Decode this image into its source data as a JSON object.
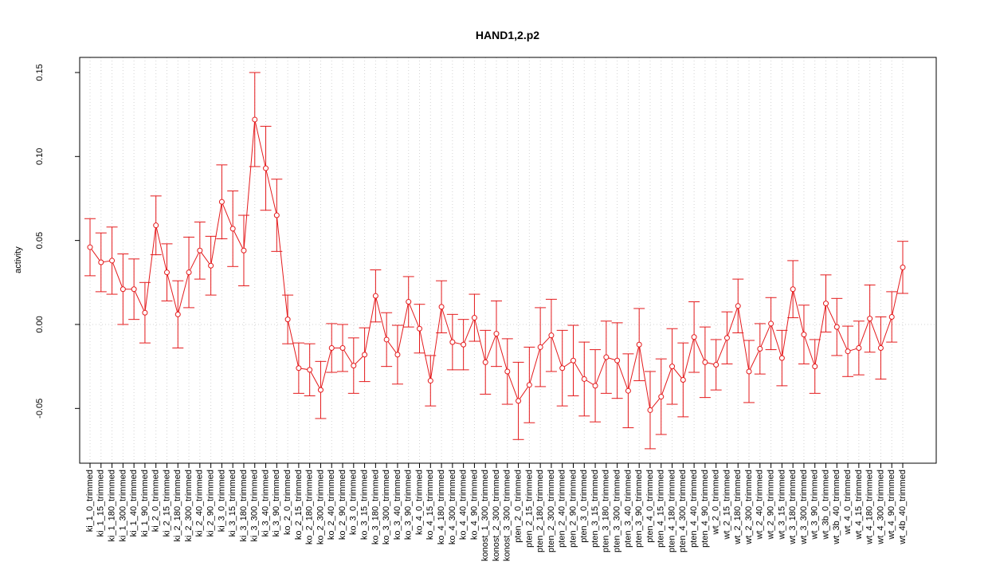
{
  "chart_data": {
    "type": "errorbar",
    "title": "HAND1,2.p2",
    "ylabel": "activity",
    "color": "#e41a1c",
    "categories": [
      "ki_1_0_trimmed",
      "ki_1_15_trimmed",
      "ki_1_180_trimmed",
      "ki_1_300_trimmed",
      "ki_1_40_trimmed",
      "ki_1_90_trimmed",
      "ki_2_0_trimmed",
      "ki_2_15_trimmed",
      "ki_2_180_trimmed",
      "ki_2_300_trimmed",
      "ki_2_40_trimmed",
      "ki_2_90_trimmed",
      "ki_3_0_trimmed",
      "ki_3_15_trimmed",
      "ki_3_180_trimmed",
      "ki_3_300_trimmed",
      "ki_3_40_trimmed",
      "ki_3_90_trimmed",
      "ko_2_0_trimmed",
      "ko_2_15_trimmed",
      "ko_2_180_trimmed",
      "ko_2_300_trimmed",
      "ko_2_40_trimmed",
      "ko_2_90_trimmed",
      "ko_3_0_trimmed",
      "ko_3_15_trimmed",
      "ko_3_180_trimmed",
      "ko_3_300_trimmed",
      "ko_3_40_trimmed",
      "ko_3_90_trimmed",
      "ko_4_0_trimmed",
      "ko_4_15_trimmed",
      "ko_4_180_trimmed",
      "ko_4_300_trimmed",
      "ko_4_40_trimmed",
      "ko_4_90_trimmed",
      "konost_1_300_trimmed",
      "konost_2_300_trimmed",
      "konost_3_300_trimmed",
      "pten_2_0_trimmed",
      "pten_2_15_trimmed",
      "pten_2_180_trimmed",
      "pten_2_300_trimmed",
      "pten_2_40_trimmed",
      "pten_2_90_trimmed",
      "pten_3_0_trimmed",
      "pten_3_15_trimmed",
      "pten_3_180_trimmed",
      "pten_3_300_trimmed",
      "pten_3_40_trimmed",
      "pten_3_90_trimmed",
      "pten_4_0_trimmed",
      "pten_4_15_trimmed",
      "pten_4_180_trimmed",
      "pten_4_300_trimmed",
      "pten_4_40_trimmed",
      "pten_4_90_trimmed",
      "wt_2_0_trimmed",
      "wt_2_15_trimmed",
      "wt_2_180_trimmed",
      "wt_2_300_trimmed",
      "wt_2_40_trimmed",
      "wt_2_90_trimmed",
      "wt_3_15_trimmed",
      "wt_3_180_trimmed",
      "wt_3_300_trimmed",
      "wt_3_90_trimmed",
      "wt_3b_0_trimmed",
      "wt_3b_40_trimmed",
      "wt_4_0_trimmed",
      "wt_4_15_trimmed",
      "wt_4_180_trimmed",
      "wt_4_300_trimmed",
      "wt_4_90_trimmed",
      "wt_4b_40_trimmed"
    ],
    "values": [
      0.046,
      0.037,
      0.038,
      0.021,
      0.021,
      0.007,
      0.059,
      0.031,
      0.006,
      0.031,
      0.044,
      0.035,
      0.073,
      0.057,
      0.044,
      0.122,
      0.093,
      0.065,
      0.003,
      -0.026,
      -0.027,
      -0.039,
      -0.014,
      -0.014,
      -0.0245,
      -0.018,
      0.017,
      -0.009,
      -0.018,
      0.0135,
      -0.0025,
      -0.0335,
      0.0105,
      -0.0105,
      -0.012,
      0.004,
      -0.0225,
      -0.0055,
      -0.028,
      -0.0455,
      -0.036,
      -0.0135,
      -0.0065,
      -0.026,
      -0.0215,
      -0.0325,
      -0.0365,
      -0.0195,
      -0.0215,
      -0.0395,
      -0.012,
      -0.051,
      -0.043,
      -0.025,
      -0.033,
      -0.0075,
      -0.0225,
      -0.024,
      -0.008,
      0.011,
      -0.028,
      -0.0145,
      0.0005,
      -0.02,
      0.021,
      -0.006,
      -0.025,
      0.0125,
      -0.0015,
      -0.016,
      -0.014,
      0.0035,
      -0.014,
      0.0045,
      0.034
    ],
    "errors": [
      0.017,
      0.0175,
      0.02,
      0.021,
      0.018,
      0.018,
      0.0175,
      0.017,
      0.02,
      0.021,
      0.017,
      0.0175,
      0.022,
      0.0225,
      0.021,
      0.028,
      0.025,
      0.0215,
      0.0145,
      0.015,
      0.0155,
      0.017,
      0.0145,
      0.014,
      0.0165,
      0.016,
      0.0155,
      0.016,
      0.0175,
      0.015,
      0.0145,
      0.015,
      0.0155,
      0.0165,
      0.015,
      0.014,
      0.019,
      0.0195,
      0.0195,
      0.023,
      0.0225,
      0.0235,
      0.0215,
      0.0225,
      0.021,
      0.022,
      0.0215,
      0.0215,
      0.0225,
      0.022,
      0.0215,
      0.023,
      0.0225,
      0.0225,
      0.022,
      0.021,
      0.021,
      0.015,
      0.0155,
      0.016,
      0.0185,
      0.015,
      0.0155,
      0.0165,
      0.017,
      0.0175,
      0.016,
      0.017,
      0.017,
      0.015,
      0.016,
      0.02,
      0.0185,
      0.015,
      0.0155
    ],
    "ylim": [
      -0.0826,
      0.159
    ],
    "yticks": [
      -0.05,
      {
        "value": 0,
        "label": "0.00"
      },
      0.05,
      {
        "value": 0.1,
        "label": "0.10"
      },
      0.15
    ],
    "hline": 0,
    "grid": true
  }
}
